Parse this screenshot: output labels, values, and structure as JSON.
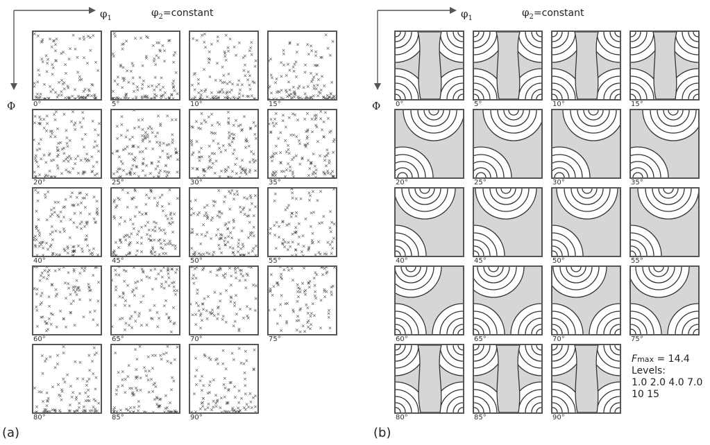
{
  "axis_labels": {
    "phi1_base": "φ",
    "phi1_sub": "1",
    "phi2_base": "φ",
    "phi2_sub": "2",
    "phi2_rest": "=constant",
    "phi": "Φ"
  },
  "panel_a": {
    "letter": "(a)"
  },
  "panel_b": {
    "letter": "(b)",
    "fmax_prefix": "F",
    "fmax_sub": "max",
    "fmax_value": " = 14.4",
    "levels_title": "Levels:",
    "levels_line1": "1.0  2.0  4.0 7.0",
    "levels_line2": "10  15"
  },
  "sections": [
    "0°",
    "5°",
    "10°",
    "15°",
    "20°",
    "25°",
    "30°",
    "35°",
    "40°",
    "45°",
    "50°",
    "55°",
    "60°",
    "65°",
    "70°",
    "75°",
    "80°",
    "85°",
    "90°"
  ],
  "colors": {
    "frame": "#555555",
    "contour_fill": "#d6d6d6",
    "contour_line": "#333333",
    "marker": "#444444"
  }
}
